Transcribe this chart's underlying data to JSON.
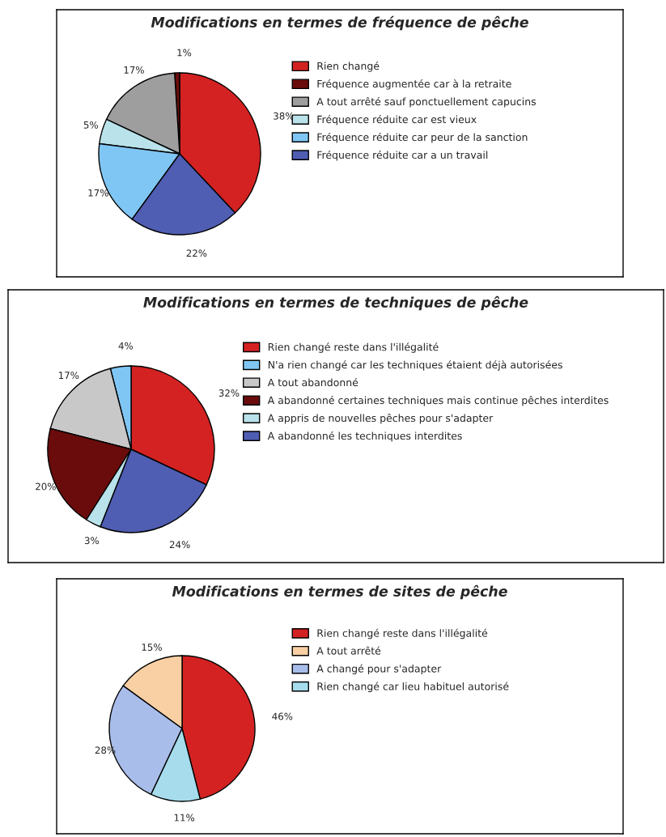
{
  "chart_data": [
    {
      "type": "pie",
      "title": "Modifications en termes de fréquence de pêche",
      "legend": "right",
      "categories": [
        "Rien changé",
        "Fréquence augmentée car à la retraite",
        "A tout arrêté sauf ponctuellement capucins",
        "Fréquence réduite car est vieux",
        "Fréquence réduite car peur de la sanction",
        "Fréquence réduite car a un travail"
      ],
      "values": [
        38,
        1,
        17,
        5,
        17,
        22
      ],
      "value_labels": [
        "38%",
        "1%",
        "17%",
        "5%",
        "17%",
        "22%"
      ],
      "colors": [
        "#d42222",
        "#6a0c0c",
        "#9e9e9e",
        "#b9e2ea",
        "#80c6f4",
        "#4f5db2"
      ]
    },
    {
      "type": "pie",
      "title": "Modifications en termes de techniques de pêche",
      "legend": "right",
      "categories": [
        "Rien changé reste dans l'illégalité",
        "N'a rien changé car les techniques étaient déjà autorisées",
        "A tout abandonné",
        "A abandonné certaines techniques mais continue pêches interdites",
        "A appris de nouvelles pêches pour s'adapter",
        "A abandonné les techniques interdites"
      ],
      "values": [
        32,
        4,
        17,
        20,
        3,
        24
      ],
      "value_labels": [
        "32%",
        "4%",
        "17%",
        "20%",
        "3%",
        "24%"
      ],
      "colors": [
        "#d42222",
        "#80c6f4",
        "#c8c8c8",
        "#6a0c0c",
        "#b9e2ea",
        "#4f5db2"
      ]
    },
    {
      "type": "pie",
      "title": "Modifications en termes de sites de pêche",
      "legend": "right",
      "categories": [
        "Rien changé reste dans l'illégalité",
        "A tout arrêté",
        "A changé pour s'adapter",
        "Rien changé car lieu habituel autorisé"
      ],
      "values": [
        46,
        15,
        28,
        11
      ],
      "value_labels": [
        "46%",
        "15%",
        "28%",
        "11%"
      ],
      "colors": [
        "#d42222",
        "#f8d0a4",
        "#a9bdea",
        "#a6dcec"
      ]
    }
  ]
}
